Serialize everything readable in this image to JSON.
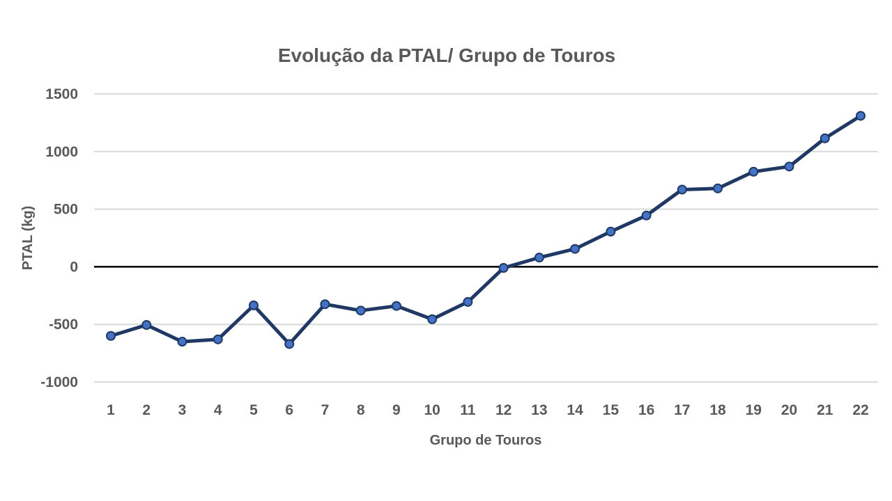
{
  "chart_data": {
    "type": "line",
    "title": "Evolução da PTAL/ Grupo de  Touros",
    "xlabel": "Grupo de Touros",
    "ylabel": "PTAL (kg)",
    "ylim": [
      -1000,
      1500
    ],
    "yticks": [
      "1500",
      "1000",
      "500",
      "0",
      "-500",
      "-1000"
    ],
    "grid": true,
    "legend": "none",
    "categories": [
      "1",
      "2",
      "3",
      "4",
      "5",
      "6",
      "7",
      "8",
      "9",
      "10",
      "11",
      "12",
      "13",
      "14",
      "15",
      "16",
      "17",
      "18",
      "19",
      "20",
      "21",
      "22"
    ],
    "series": [
      {
        "values": [
          -600,
          -505,
          -650,
          -630,
          -335,
          -670,
          -325,
          -380,
          -340,
          -455,
          -305,
          -10,
          80,
          155,
          305,
          445,
          670,
          680,
          825,
          870,
          1115,
          1310
        ],
        "color": "#203864",
        "marker_color": "#4472c4"
      }
    ]
  }
}
